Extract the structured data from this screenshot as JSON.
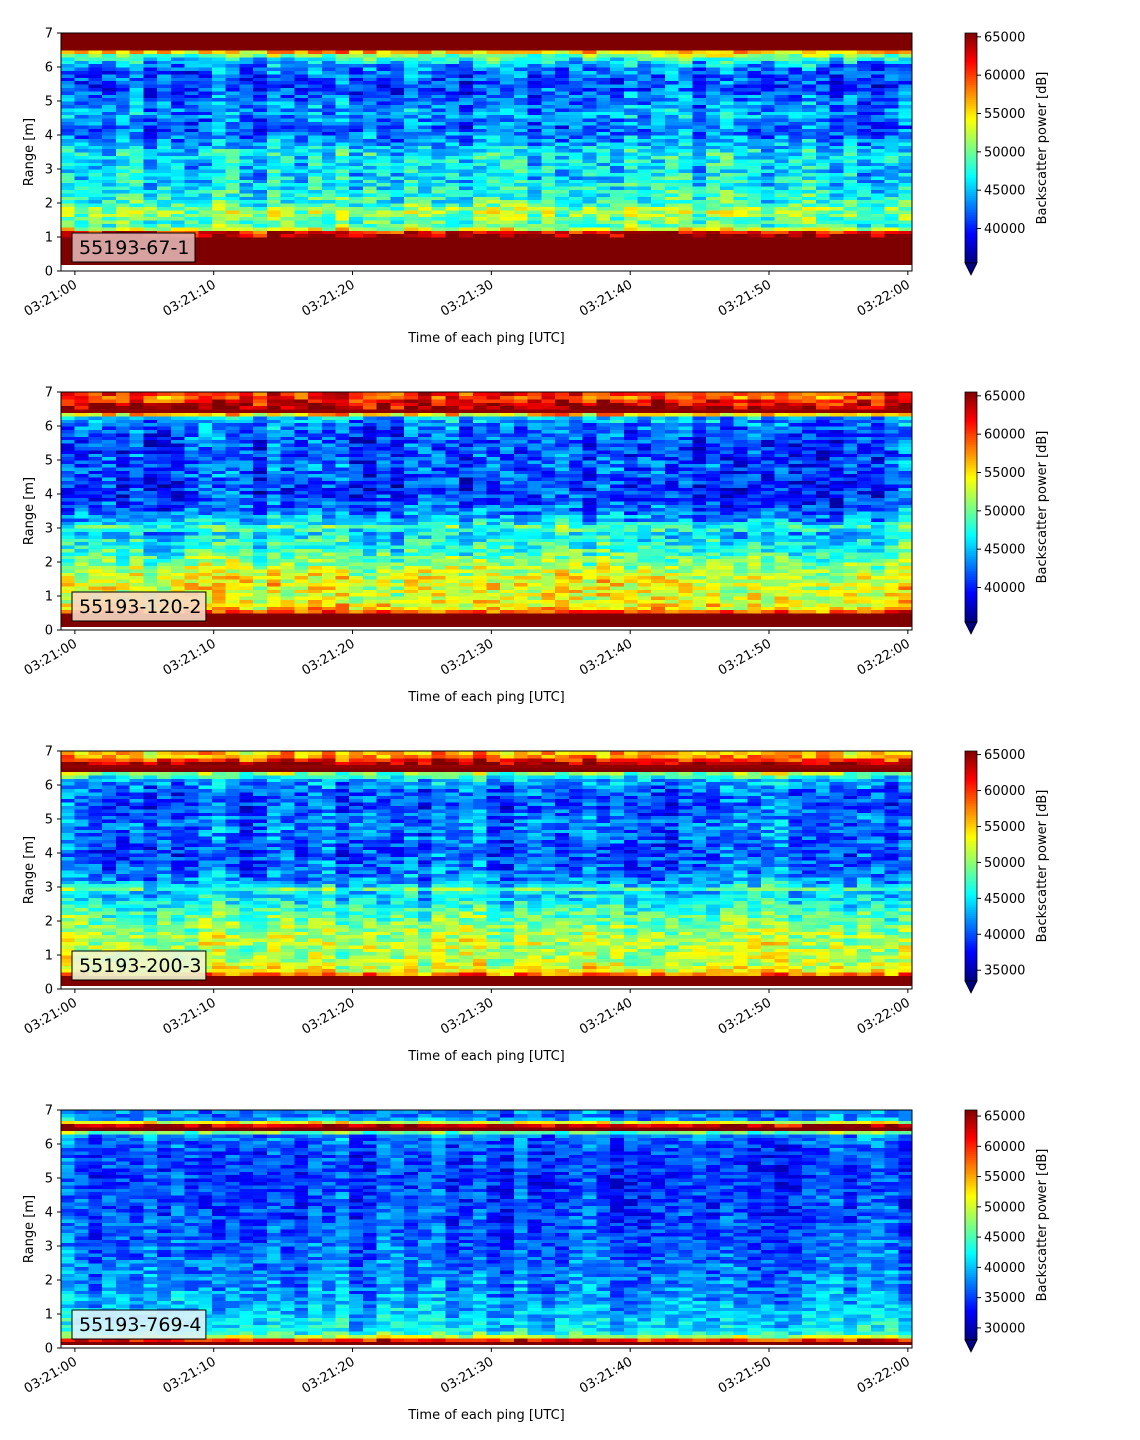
{
  "colormap": {
    "name": "jet",
    "stops": [
      "#00007f",
      "#0000ff",
      "#007fff",
      "#00ffff",
      "#7fff7f",
      "#ffff00",
      "#ff7f00",
      "#ff0000",
      "#7f0000"
    ],
    "under_color": "#00007f"
  },
  "chart_data": [
    {
      "type": "heatmap",
      "label": "55193-67-1",
      "label_box_color": "#e0b2b0",
      "xlabel": "Time of each ping [UTC]",
      "ylabel": "Range [m]",
      "x_ticks": [
        "03:21:00",
        "03:21:10",
        "03:21:20",
        "03:21:30",
        "03:21:40",
        "03:21:50",
        "03:22:00"
      ],
      "x_tick_seconds": [
        0,
        10,
        20,
        30,
        40,
        50,
        60
      ],
      "xlim_seconds": [
        -1.0,
        60.3
      ],
      "ylim": [
        0,
        7
      ],
      "y_ticks": [
        0,
        1,
        2,
        3,
        4,
        5,
        6,
        7
      ],
      "data_range_m": [
        0.2,
        7.0
      ],
      "colorbar_label": "Backscatter power [dB]",
      "colorbar_range": [
        35500,
        65500
      ],
      "colorbar_ticks": [
        40000,
        45000,
        50000,
        55000,
        60000,
        65000
      ],
      "colorbar_extend": "min",
      "range_profile": [
        [
          0.2,
          65500
        ],
        [
          1.0,
          65500
        ],
        [
          1.15,
          62000
        ],
        [
          1.3,
          49000
        ],
        [
          1.6,
          50000
        ],
        [
          1.8,
          52000
        ],
        [
          2.0,
          48000
        ],
        [
          2.4,
          47000
        ],
        [
          3.0,
          45500
        ],
        [
          3.4,
          47000
        ],
        [
          3.8,
          44000
        ],
        [
          4.2,
          42000
        ],
        [
          4.6,
          44000
        ],
        [
          5.0,
          43000
        ],
        [
          5.5,
          41000
        ],
        [
          6.0,
          43000
        ],
        [
          6.3,
          48000
        ],
        [
          6.45,
          56000
        ],
        [
          6.55,
          65500
        ],
        [
          7.0,
          65500
        ]
      ]
    },
    {
      "type": "heatmap",
      "label": "55193-120-2",
      "label_box_color": "#f7d8c4",
      "xlabel": "Time of each ping [UTC]",
      "ylabel": "Range [m]",
      "x_ticks": [
        "03:21:00",
        "03:21:10",
        "03:21:20",
        "03:21:30",
        "03:21:40",
        "03:21:50",
        "03:22:00"
      ],
      "x_tick_seconds": [
        0,
        10,
        20,
        30,
        40,
        50,
        60
      ],
      "xlim_seconds": [
        -1.0,
        60.3
      ],
      "ylim": [
        0,
        7
      ],
      "y_ticks": [
        0,
        1,
        2,
        3,
        4,
        5,
        6,
        7
      ],
      "data_range_m": [
        0.1,
        7.0
      ],
      "colorbar_label": "Backscatter power [dB]",
      "colorbar_range": [
        35500,
        65500
      ],
      "colorbar_ticks": [
        40000,
        45000,
        50000,
        55000,
        60000,
        65000
      ],
      "colorbar_extend": "min",
      "range_profile": [
        [
          0.1,
          65500
        ],
        [
          0.45,
          65500
        ],
        [
          0.6,
          56000
        ],
        [
          0.9,
          53000
        ],
        [
          1.4,
          54000
        ],
        [
          1.8,
          52000
        ],
        [
          2.2,
          49000
        ],
        [
          2.6,
          47000
        ],
        [
          2.9,
          45000
        ],
        [
          3.0,
          50000
        ],
        [
          3.2,
          45000
        ],
        [
          3.6,
          42000
        ],
        [
          4.1,
          40500
        ],
        [
          4.8,
          42000
        ],
        [
          5.3,
          41000
        ],
        [
          5.9,
          42000
        ],
        [
          6.3,
          45000
        ],
        [
          6.4,
          65500
        ],
        [
          6.75,
          62000
        ],
        [
          6.9,
          58000
        ],
        [
          7.0,
          63000
        ]
      ]
    },
    {
      "type": "heatmap",
      "label": "55193-200-3",
      "label_box_color": "#eef5d2",
      "xlabel": "Time of each ping [UTC]",
      "ylabel": "Range [m]",
      "x_ticks": [
        "03:21:00",
        "03:21:10",
        "03:21:20",
        "03:21:30",
        "03:21:40",
        "03:21:50",
        "03:22:00"
      ],
      "x_tick_seconds": [
        0,
        10,
        20,
        30,
        40,
        50,
        60
      ],
      "xlim_seconds": [
        -1.0,
        60.3
      ],
      "ylim": [
        0,
        7
      ],
      "y_ticks": [
        0,
        1,
        2,
        3,
        4,
        5,
        6,
        7
      ],
      "data_range_m": [
        0.1,
        7.0
      ],
      "colorbar_label": "Backscatter power [dB]",
      "colorbar_range": [
        33500,
        65500
      ],
      "colorbar_ticks": [
        35000,
        40000,
        45000,
        50000,
        55000,
        60000,
        65000
      ],
      "colorbar_extend": "min",
      "range_profile": [
        [
          0.1,
          65500
        ],
        [
          0.35,
          65500
        ],
        [
          0.5,
          54000
        ],
        [
          0.8,
          51000
        ],
        [
          1.4,
          51500
        ],
        [
          1.9,
          49500
        ],
        [
          2.3,
          47500
        ],
        [
          2.6,
          45000
        ],
        [
          2.85,
          44000
        ],
        [
          2.95,
          48000
        ],
        [
          3.1,
          43000
        ],
        [
          3.5,
          41000
        ],
        [
          4.1,
          40000
        ],
        [
          4.8,
          41500
        ],
        [
          5.4,
          40000
        ],
        [
          5.9,
          41000
        ],
        [
          6.2,
          44000
        ],
        [
          6.35,
          50000
        ],
        [
          6.45,
          65500
        ],
        [
          6.7,
          64000
        ],
        [
          6.8,
          57000
        ],
        [
          7.0,
          55000
        ]
      ]
    },
    {
      "type": "heatmap",
      "label": "55193-769-4",
      "label_box_color": "#dcf2fb",
      "xlabel": "Time of each ping [UTC]",
      "ylabel": "Range [m]",
      "x_ticks": [
        "03:21:00",
        "03:21:10",
        "03:21:20",
        "03:21:30",
        "03:21:40",
        "03:21:50",
        "03:22:00"
      ],
      "x_tick_seconds": [
        0,
        10,
        20,
        30,
        40,
        50,
        60
      ],
      "xlim_seconds": [
        -1.0,
        60.3
      ],
      "ylim": [
        0,
        7
      ],
      "y_ticks": [
        0,
        1,
        2,
        3,
        4,
        5,
        6,
        7
      ],
      "data_range_m": [
        0.1,
        7.0
      ],
      "colorbar_label": "Backscatter power [dB]",
      "colorbar_range": [
        28000,
        66000
      ],
      "colorbar_ticks": [
        30000,
        35000,
        40000,
        45000,
        50000,
        55000,
        60000,
        65000
      ],
      "colorbar_extend": "min",
      "range_profile": [
        [
          0.1,
          66000
        ],
        [
          0.22,
          66000
        ],
        [
          0.3,
          52000
        ],
        [
          0.5,
          42000
        ],
        [
          1.0,
          40500
        ],
        [
          1.6,
          38500
        ],
        [
          2.3,
          37500
        ],
        [
          3.0,
          36500
        ],
        [
          4.0,
          35500
        ],
        [
          5.0,
          35000
        ],
        [
          5.8,
          35500
        ],
        [
          6.3,
          37500
        ],
        [
          6.4,
          55000
        ],
        [
          6.45,
          66000
        ],
        [
          6.6,
          62000
        ],
        [
          6.7,
          40000
        ],
        [
          6.9,
          36500
        ],
        [
          7.0,
          38000
        ]
      ]
    }
  ]
}
